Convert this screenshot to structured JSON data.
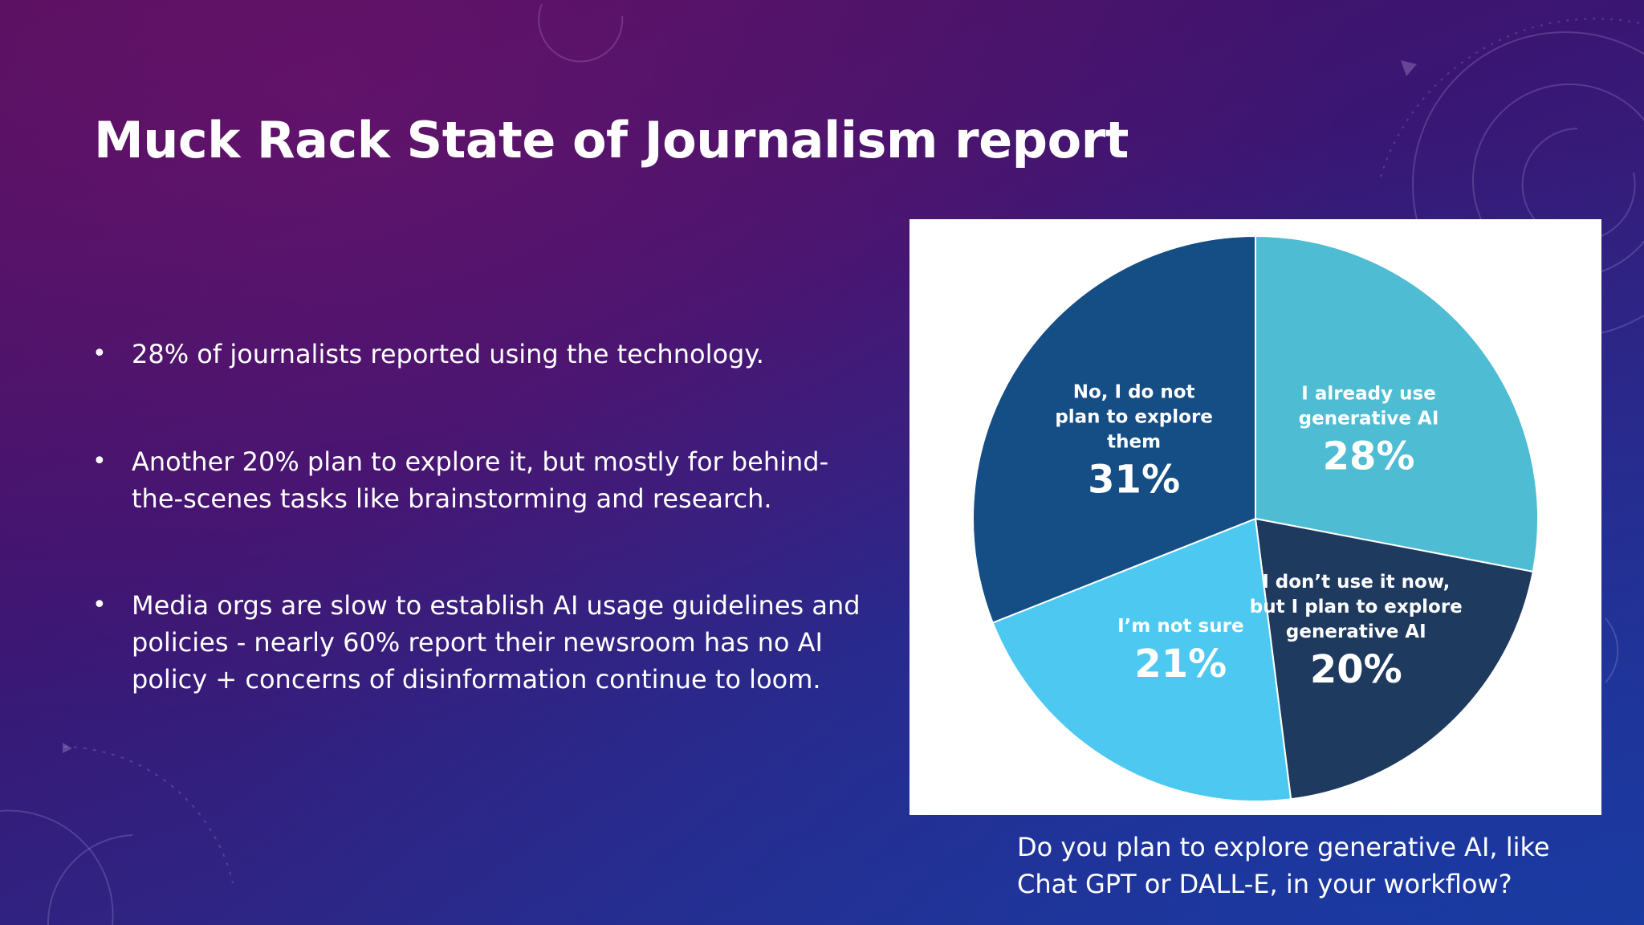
{
  "slide": {
    "title": "Muck Rack State of Journalism report",
    "bullets": [
      "28% of journalists reported using the technology.",
      "Another 20% plan to explore it, but mostly for behind-the-scenes tasks like brainstorming and research.",
      "Media orgs are slow to establish AI usage guidelines and policies - nearly 60% report their newsroom has no AI policy + concerns of disinformation continue to loom."
    ],
    "bullet_symbol": "•",
    "caption": "Do you plan to explore generative AI, like Chat GPT or DALL-E, in your workflow?"
  },
  "chart_data": {
    "type": "pie",
    "title": "",
    "start_angle_deg": 0,
    "direction": "clockwise",
    "slices": [
      {
        "label_lines": [
          "I already use",
          "generative AI"
        ],
        "value": 28,
        "display": "28%",
        "color": "#4ebcd2"
      },
      {
        "label_lines": [
          "I don’t use it now,",
          "but I plan to explore",
          "generative AI"
        ],
        "value": 20,
        "display": "20%",
        "color": "#1e3a5e"
      },
      {
        "label_lines": [
          "I’m not sure"
        ],
        "value": 21,
        "display": "21%",
        "color": "#4dc8f0"
      },
      {
        "label_lines": [
          "No, I do not",
          "plan to explore",
          "them"
        ],
        "value": 31,
        "display": "31%",
        "color": "#154d85"
      }
    ],
    "legend": "none"
  },
  "colors": {
    "card_background": "#ffffff",
    "slice_border": "#ffffff",
    "text": "#ffffff"
  }
}
